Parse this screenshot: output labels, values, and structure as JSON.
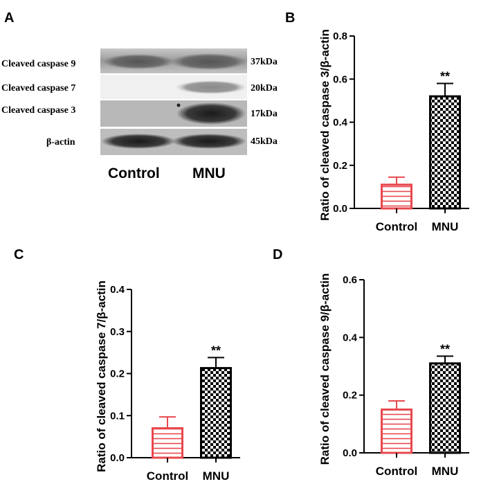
{
  "panel_a": {
    "label": "A",
    "rows": [
      {
        "protein": "Cleaved caspase 9",
        "kda": "37kDa"
      },
      {
        "protein": "Cleaved caspase 7",
        "kda": "20kDa"
      },
      {
        "protein": "Cleaved caspase 3",
        "kda": "17kDa"
      },
      {
        "protein": "β-actin",
        "kda": "45kDa"
      }
    ],
    "lanes": [
      "Control",
      "MNU"
    ]
  },
  "colors": {
    "control": "#e8484e",
    "mnu": "#000000"
  },
  "chart_data": [
    {
      "panel": "B",
      "type": "bar",
      "categories": [
        "Control",
        "MNU"
      ],
      "values": [
        0.11,
        0.52
      ],
      "errors": [
        0.035,
        0.06
      ],
      "ylabel": "Ratio of cleaved caspase 3/β-actin",
      "ylim": [
        0,
        0.8
      ],
      "yticks": [
        0.0,
        0.2,
        0.4,
        0.6,
        0.8
      ],
      "ytick_labels": [
        "0.0",
        "0.2",
        "0.4",
        "0.6",
        "0.8"
      ],
      "significance": "**"
    },
    {
      "panel": "C",
      "type": "bar",
      "categories": [
        "Control",
        "MNU"
      ],
      "values": [
        0.07,
        0.213
      ],
      "errors": [
        0.027,
        0.025
      ],
      "ylabel": "Ratio of cleaved caspase 7/β-actin",
      "ylim": [
        0,
        0.4
      ],
      "yticks": [
        0.0,
        0.1,
        0.2,
        0.3,
        0.4
      ],
      "ytick_labels": [
        "0.0",
        "0.1",
        "0.2",
        "0.3",
        "0.4"
      ],
      "significance": "**"
    },
    {
      "panel": "D",
      "type": "bar",
      "categories": [
        "Control",
        "MNU"
      ],
      "values": [
        0.15,
        0.31
      ],
      "errors": [
        0.03,
        0.025
      ],
      "ylabel": "Ratio of cleaved caspase 9/β-actin",
      "ylim": [
        0,
        0.6
      ],
      "yticks": [
        0.0,
        0.2,
        0.4,
        0.6
      ],
      "ytick_labels": [
        "0.0",
        "0.2",
        "0.4",
        "0.6"
      ],
      "significance": "**"
    }
  ]
}
